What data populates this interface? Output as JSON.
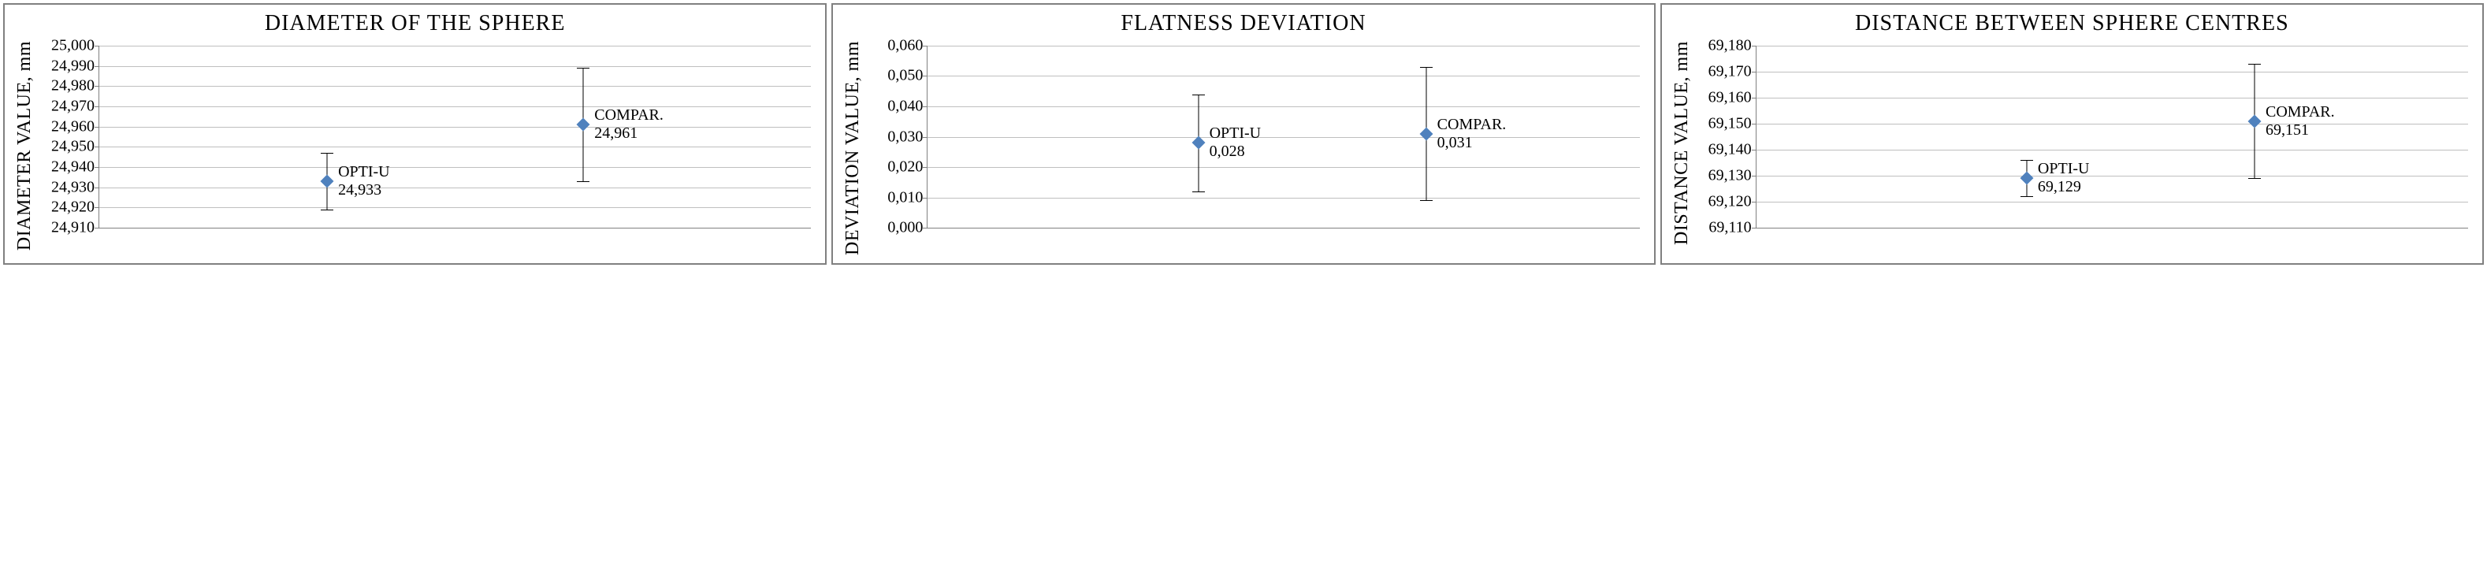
{
  "panels": [
    {
      "id": "diameter",
      "title": "DIAMETER OF THE SPHERE",
      "ylabel": "DIAMETER VALUE, mm",
      "ylim": [
        24.91,
        25.0
      ],
      "ytick_step": 0.01,
      "decimals": 3,
      "grid_color": "#bfbfbf",
      "axis_color": "#808080",
      "marker_color": "#4f81bd",
      "errbar_color": "#000000",
      "background_color": "#ffffff",
      "series": [
        {
          "x_frac": 0.32,
          "value": 24.933,
          "err": 0.014,
          "label_name": "OPTI-U",
          "label_value": "24,933",
          "label_side": "right"
        },
        {
          "x_frac": 0.68,
          "value": 24.961,
          "err": 0.028,
          "label_name": "COMPAR.",
          "label_value": "24,961",
          "label_side": "right"
        }
      ],
      "tick_labels": [
        "24,910",
        "24,920",
        "24,930",
        "24,940",
        "24,950",
        "24,960",
        "24,970",
        "24,980",
        "24,990",
        "25,000"
      ]
    },
    {
      "id": "flatness",
      "title": "FLATNESS DEVIATION",
      "ylabel": "DEVIATION VALUE, mm",
      "ylim": [
        0.0,
        0.06
      ],
      "ytick_step": 0.01,
      "decimals": 3,
      "grid_color": "#bfbfbf",
      "axis_color": "#808080",
      "marker_color": "#4f81bd",
      "errbar_color": "#000000",
      "background_color": "#ffffff",
      "series": [
        {
          "x_frac": 0.38,
          "value": 0.028,
          "err": 0.016,
          "label_name": "OPTI-U",
          "label_value": "0,028",
          "label_side": "right"
        },
        {
          "x_frac": 0.7,
          "value": 0.031,
          "err": 0.022,
          "label_name": "COMPAR.",
          "label_value": "0,031",
          "label_side": "right"
        }
      ],
      "tick_labels": [
        "0,000",
        "0,010",
        "0,020",
        "0,030",
        "0,040",
        "0,050",
        "0,060"
      ]
    },
    {
      "id": "distance",
      "title": "DISTANCE BETWEEN SPHERE CENTRES",
      "ylabel": "DISTANCE VALUE, mm",
      "ylim": [
        69.11,
        69.18
      ],
      "ytick_step": 0.01,
      "decimals": 3,
      "grid_color": "#bfbfbf",
      "axis_color": "#808080",
      "marker_color": "#4f81bd",
      "errbar_color": "#000000",
      "background_color": "#ffffff",
      "series": [
        {
          "x_frac": 0.38,
          "value": 69.129,
          "err": 0.007,
          "label_name": "OPTI-U",
          "label_value": "69,129",
          "label_side": "right"
        },
        {
          "x_frac": 0.7,
          "value": 69.151,
          "err": 0.022,
          "label_name": "COMPAR.",
          "label_value": "69,151",
          "label_side": "right"
        }
      ],
      "tick_labels": [
        "69,110",
        "69,120",
        "69,130",
        "69,140",
        "69,150",
        "69,160",
        "69,170",
        "69,180"
      ]
    }
  ]
}
